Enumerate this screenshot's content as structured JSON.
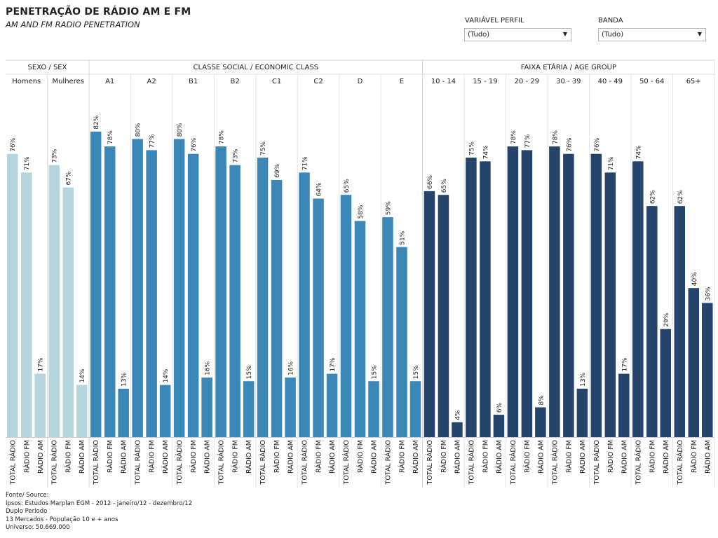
{
  "header": {
    "title": "PENETRAÇÃO DE RÁDIO AM E FM",
    "subtitle": "AM AND FM RADIO PENETRATION"
  },
  "filters": [
    {
      "label": "VARIÁVEL PERFIL",
      "value": "(Tudo)"
    },
    {
      "label": "BANDA",
      "value": "(Tudo)"
    }
  ],
  "colors": {
    "sex": "#b5d5dc",
    "class": "#3a87b8",
    "age": "#24446b",
    "grid": "#d8d8d8"
  },
  "chart_data": {
    "type": "bar",
    "measures": [
      "TOTAL RÁDIO",
      "RÁDIO FM",
      "RÁDIO AM"
    ],
    "ylim": [
      0,
      100
    ],
    "value_suffix": "%",
    "groups": [
      {
        "name": "SEXO / SEX",
        "color_key": "sex",
        "categories": [
          {
            "name": "Homens",
            "values": [
              76,
              71,
              17
            ]
          },
          {
            "name": "Mulheres",
            "values": [
              73,
              67,
              14
            ]
          }
        ]
      },
      {
        "name": "CLASSE SOCIAL / ECONOMIC CLASS",
        "color_key": "class",
        "categories": [
          {
            "name": "A1",
            "values": [
              82,
              78,
              13
            ]
          },
          {
            "name": "A2",
            "values": [
              80,
              77,
              14
            ]
          },
          {
            "name": "B1",
            "values": [
              80,
              76,
              16
            ]
          },
          {
            "name": "B2",
            "values": [
              78,
              73,
              15
            ]
          },
          {
            "name": "C1",
            "values": [
              75,
              69,
              16
            ]
          },
          {
            "name": "C2",
            "values": [
              71,
              64,
              17
            ]
          },
          {
            "name": "D",
            "values": [
              65,
              58,
              15
            ]
          },
          {
            "name": "E",
            "values": [
              59,
              51,
              15
            ]
          }
        ]
      },
      {
        "name": "FAIXA ETÁRIA / AGE GROUP",
        "color_key": "age",
        "categories": [
          {
            "name": "10 - 14",
            "values": [
              66,
              65,
              4
            ]
          },
          {
            "name": "15 - 19",
            "values": [
              75,
              74,
              6
            ]
          },
          {
            "name": "20 - 29",
            "values": [
              78,
              77,
              8
            ]
          },
          {
            "name": "30 - 39",
            "values": [
              78,
              76,
              13
            ]
          },
          {
            "name": "40 - 49",
            "values": [
              76,
              71,
              17
            ]
          },
          {
            "name": "50 - 64",
            "values": [
              74,
              62,
              29
            ]
          },
          {
            "name": "65+",
            "values": [
              62,
              40,
              36
            ]
          }
        ]
      }
    ]
  },
  "footer": {
    "lines": [
      "Fonte/ Source:",
      "Ipsos: Estudos Marplan EGM - 2012 - janeiro/12 - dezembro/12",
      "Duplo Período",
      "13 Mercados - População 10 e + anos",
      "Universo: 50.669.000"
    ]
  }
}
